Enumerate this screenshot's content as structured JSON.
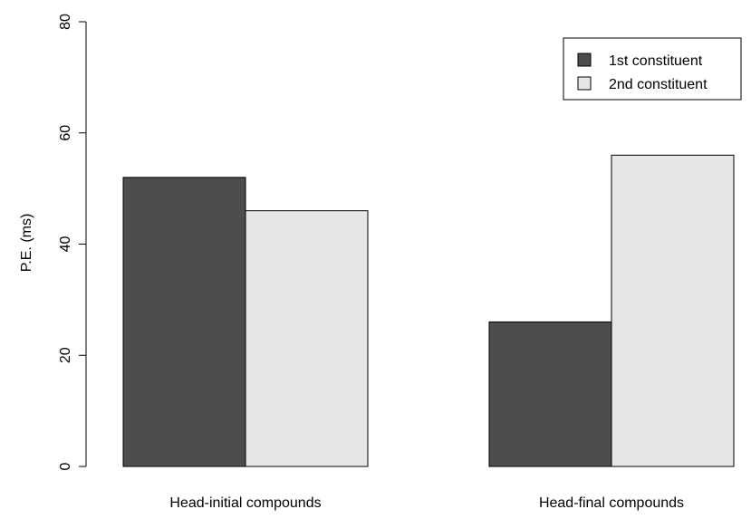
{
  "chart_data": {
    "type": "bar",
    "title": "",
    "xlabel": "",
    "ylabel": "P.E. (ms)",
    "ylim": [
      0,
      80
    ],
    "yticks": [
      0,
      20,
      40,
      60,
      80
    ],
    "grid": false,
    "legend_position": "top-right",
    "categories": [
      "Head-initial compounds",
      "Head-final compounds"
    ],
    "series": [
      {
        "name": "1st constituent",
        "color": "#4d4d4d",
        "values": [
          52,
          26
        ]
      },
      {
        "name": "2nd constituent",
        "color": "#e6e6e6",
        "values": [
          46,
          56
        ]
      }
    ]
  }
}
